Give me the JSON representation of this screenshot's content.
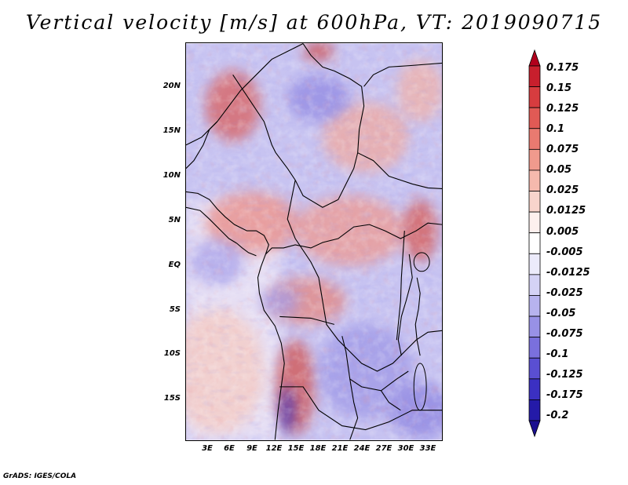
{
  "title": "Vertical velocity [m/s] at 600hPa, VT: 2019090715",
  "map": {
    "lat_labels": [
      "20N",
      "15N",
      "10N",
      "5N",
      "EQ",
      "5S",
      "10S",
      "15S"
    ],
    "lon_labels": [
      "3E",
      "6E",
      "9E",
      "12E",
      "15E",
      "18E",
      "21E",
      "24E",
      "27E",
      "30E",
      "33E"
    ]
  },
  "colorbar": {
    "labels": [
      "0.175",
      "0.15",
      "0.125",
      "0.1",
      "0.075",
      "0.05",
      "0.025",
      "0.0125",
      "0.005",
      "-0.005",
      "-0.0125",
      "-0.025",
      "-0.05",
      "-0.075",
      "-0.1",
      "-0.125",
      "-0.175",
      "-0.2"
    ],
    "colors": [
      "#b1001c",
      "#c81f2d",
      "#d73c3f",
      "#e15a55",
      "#e97a70",
      "#f09a8d",
      "#f5b9ad",
      "#f8d4cc",
      "#fdf0ee",
      "#ffffff",
      "#ecebfb",
      "#d4d2f5",
      "#b7b3ee",
      "#9891e6",
      "#7a70dd",
      "#5a4fd2",
      "#3b30c2",
      "#241aa8",
      "#1a0f8f"
    ]
  },
  "credit": "GrADS: IGES/COLA"
}
